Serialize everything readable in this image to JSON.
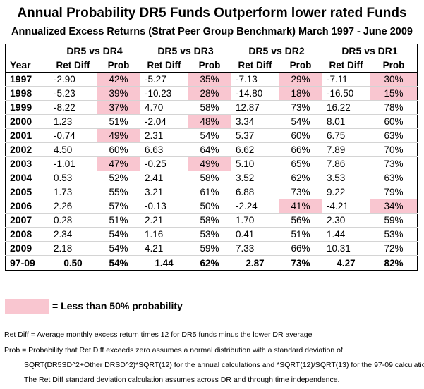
{
  "title": "Annual Probability DR5 Funds Outperform lower rated Funds",
  "subtitle": "Annualized Excess Returns (Strat Peer Group Benchmark) March 1997 - June 2009",
  "group_headers": [
    "DR5 vs DR4",
    "DR5 vs DR3",
    "DR5 vs DR2",
    "DR5 vs DR1"
  ],
  "col_headers": {
    "year": "Year",
    "ret": "Ret Diff",
    "prob": "Prob"
  },
  "rows": [
    {
      "year": "1997",
      "cells": [
        {
          "ret": "-2.90",
          "prob": "42%",
          "low": true
        },
        {
          "ret": "-5.27",
          "prob": "35%",
          "low": true
        },
        {
          "ret": "-7.13",
          "prob": "29%",
          "low": true
        },
        {
          "ret": "-7.11",
          "prob": "30%",
          "low": true
        }
      ]
    },
    {
      "year": "1998",
      "cells": [
        {
          "ret": "-5.23",
          "prob": "39%",
          "low": true
        },
        {
          "ret": "-10.23",
          "prob": "28%",
          "low": true
        },
        {
          "ret": "-14.80",
          "prob": "18%",
          "low": true
        },
        {
          "ret": "-16.50",
          "prob": "15%",
          "low": true
        }
      ]
    },
    {
      "year": "1999",
      "cells": [
        {
          "ret": "-8.22",
          "prob": "37%",
          "low": true
        },
        {
          "ret": "4.70",
          "prob": "58%",
          "low": false
        },
        {
          "ret": "12.87",
          "prob": "73%",
          "low": false
        },
        {
          "ret": "16.22",
          "prob": "78%",
          "low": false
        }
      ]
    },
    {
      "year": "2000",
      "cells": [
        {
          "ret": "1.23",
          "prob": "51%",
          "low": false
        },
        {
          "ret": "-2.04",
          "prob": "48%",
          "low": true
        },
        {
          "ret": "3.34",
          "prob": "54%",
          "low": false
        },
        {
          "ret": "8.01",
          "prob": "60%",
          "low": false
        }
      ]
    },
    {
      "year": "2001",
      "cells": [
        {
          "ret": "-0.74",
          "prob": "49%",
          "low": true
        },
        {
          "ret": "2.31",
          "prob": "54%",
          "low": false
        },
        {
          "ret": "5.37",
          "prob": "60%",
          "low": false
        },
        {
          "ret": "6.75",
          "prob": "63%",
          "low": false
        }
      ]
    },
    {
      "year": "2002",
      "cells": [
        {
          "ret": "4.50",
          "prob": "60%",
          "low": false
        },
        {
          "ret": "6.63",
          "prob": "64%",
          "low": false
        },
        {
          "ret": "6.62",
          "prob": "66%",
          "low": false
        },
        {
          "ret": "7.89",
          "prob": "70%",
          "low": false
        }
      ]
    },
    {
      "year": "2003",
      "cells": [
        {
          "ret": "-1.01",
          "prob": "47%",
          "low": true
        },
        {
          "ret": "-0.25",
          "prob": "49%",
          "low": true
        },
        {
          "ret": "5.10",
          "prob": "65%",
          "low": false
        },
        {
          "ret": "7.86",
          "prob": "73%",
          "low": false
        }
      ]
    },
    {
      "year": "2004",
      "cells": [
        {
          "ret": "0.53",
          "prob": "52%",
          "low": false
        },
        {
          "ret": "2.41",
          "prob": "58%",
          "low": false
        },
        {
          "ret": "3.52",
          "prob": "62%",
          "low": false
        },
        {
          "ret": "3.53",
          "prob": "63%",
          "low": false
        }
      ]
    },
    {
      "year": "2005",
      "cells": [
        {
          "ret": "1.73",
          "prob": "55%",
          "low": false
        },
        {
          "ret": "3.21",
          "prob": "61%",
          "low": false
        },
        {
          "ret": "6.88",
          "prob": "73%",
          "low": false
        },
        {
          "ret": "9.22",
          "prob": "79%",
          "low": false
        }
      ]
    },
    {
      "year": "2006",
      "cells": [
        {
          "ret": "2.26",
          "prob": "57%",
          "low": false
        },
        {
          "ret": "-0.13",
          "prob": "50%",
          "low": false
        },
        {
          "ret": "-2.24",
          "prob": "41%",
          "low": true
        },
        {
          "ret": "-4.21",
          "prob": "34%",
          "low": true
        }
      ]
    },
    {
      "year": "2007",
      "cells": [
        {
          "ret": "0.28",
          "prob": "51%",
          "low": false
        },
        {
          "ret": "2.21",
          "prob": "58%",
          "low": false
        },
        {
          "ret": "1.70",
          "prob": "56%",
          "low": false
        },
        {
          "ret": "2.30",
          "prob": "59%",
          "low": false
        }
      ]
    },
    {
      "year": "2008",
      "cells": [
        {
          "ret": "2.34",
          "prob": "54%",
          "low": false
        },
        {
          "ret": "1.16",
          "prob": "53%",
          "low": false
        },
        {
          "ret": "0.41",
          "prob": "51%",
          "low": false
        },
        {
          "ret": "1.44",
          "prob": "53%",
          "low": false
        }
      ]
    },
    {
      "year": "2009",
      "cells": [
        {
          "ret": "2.18",
          "prob": "54%",
          "low": false
        },
        {
          "ret": "4.21",
          "prob": "59%",
          "low": false
        },
        {
          "ret": "7.33",
          "prob": "66%",
          "low": false
        },
        {
          "ret": "10.31",
          "prob": "72%",
          "low": false
        }
      ]
    }
  ],
  "summary": {
    "year": "97-09",
    "cells": [
      {
        "ret": "0.50",
        "prob": "54%"
      },
      {
        "ret": "1.44",
        "prob": "62%"
      },
      {
        "ret": "2.87",
        "prob": "73%"
      },
      {
        "ret": "4.27",
        "prob": "82%"
      }
    ]
  },
  "highlight_color": "#f9c6d0",
  "legend": "= Less than 50% probability",
  "notes": [
    "Ret Diff = Average monthly excess return times 12 for DR5 funds minus the lower DR average",
    "Prob = Probability that Ret Diff exceeds zero assumes a normal distribution with a standard deviation of",
    "SQRT(DR5SD^2+Other DRSD^2)*SQRT(12) for the annual calculations and *SQRT(12)/SQRT(13) for the 97-09 calculations.",
    "The Ret Diff standard deviation calculation assumes across DR and through time independence."
  ]
}
